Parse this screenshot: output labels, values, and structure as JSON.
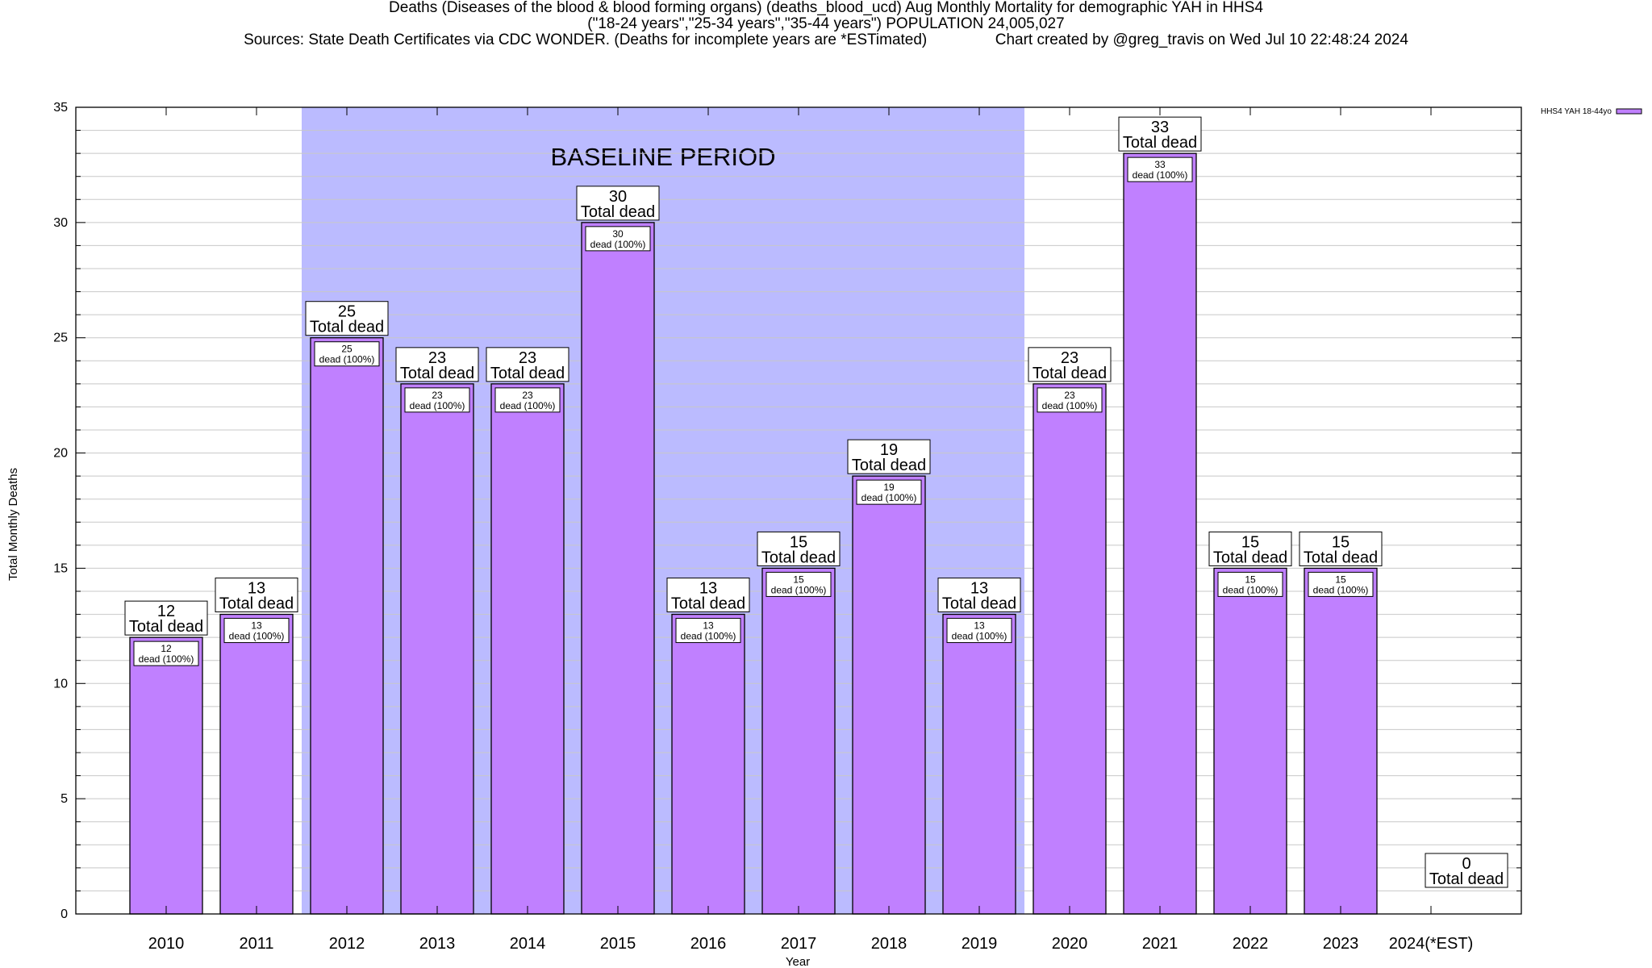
{
  "header": {
    "title_line1": "Deaths (Diseases of the blood & blood forming organs) (deaths_blood_ucd) Aug Monthly Mortality for demographic YAH in HHS4",
    "title_line2": "(\"18-24 years\",\"25-34 years\",\"35-44 years\") POPULATION 24,005,027",
    "title_line3_left": "Sources: State Death Certificates via CDC WONDER. (Deaths for incomplete years are *ESTimated)",
    "title_line3_right": "Chart created by @greg_travis on Wed Jul 10 22:48:24 2024"
  },
  "chart_data": {
    "type": "bar",
    "xlabel": "Year",
    "ylabel": "Total Monthly Deaths",
    "ylim": [
      0,
      35
    ],
    "yticks": [
      0,
      5,
      10,
      15,
      20,
      25,
      30,
      35
    ],
    "grid": true,
    "legend_position": "top-right",
    "categories": [
      "2010",
      "2011",
      "2012",
      "2013",
      "2014",
      "2015",
      "2016",
      "2017",
      "2018",
      "2019",
      "2020",
      "2021",
      "2022",
      "2023",
      "2024(*EST)"
    ],
    "series": [
      {
        "name": "HHS4 YAH 18-44yo",
        "values": [
          12,
          13,
          25,
          23,
          23,
          30,
          13,
          15,
          19,
          13,
          23,
          33,
          15,
          15,
          0
        ]
      }
    ],
    "total_label": "Total dead",
    "inner_label_suffix": "dead (100%)",
    "baseline": {
      "label": "BASELINE PERIOD",
      "from": "2012",
      "to": "2019"
    },
    "colors": {
      "bar": "#c080ff",
      "baseline": "#bbbbff",
      "grid": "#c8c8c8"
    }
  }
}
